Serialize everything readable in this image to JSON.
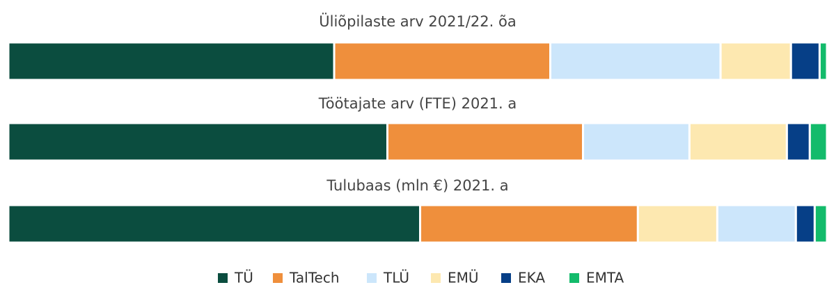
{
  "chart_data": {
    "type": "stacked-share-bars",
    "categories": [
      "Üliõpilaste arv 2021/22. õa",
      "Töötajate arv (FTE) 2021. a",
      "Tulubaas (mln €) 2021. a"
    ],
    "xlim": [
      0,
      100
    ],
    "series": [
      {
        "name": "TÜ",
        "color": "#0b4d3f",
        "values": [
          39.8,
          46.3,
          50.3
        ]
      },
      {
        "name": "TalTech",
        "color": "#ef8f3c",
        "values": [
          26.4,
          23.9,
          26.6
        ]
      },
      {
        "name": "TLÜ",
        "color": "#cce6fb",
        "values": [
          20.8,
          13.0,
          9.6
        ]
      },
      {
        "name": "EMÜ",
        "color": "#fde8b0",
        "values": [
          8.6,
          11.9,
          9.7
        ]
      },
      {
        "name": "EKA",
        "color": "#063f87",
        "values": [
          3.5,
          2.8,
          2.3
        ]
      },
      {
        "name": "EMTA",
        "color": "#13bb6b",
        "values": [
          0.9,
          2.1,
          1.5
        ]
      }
    ],
    "legend": "bottom"
  }
}
